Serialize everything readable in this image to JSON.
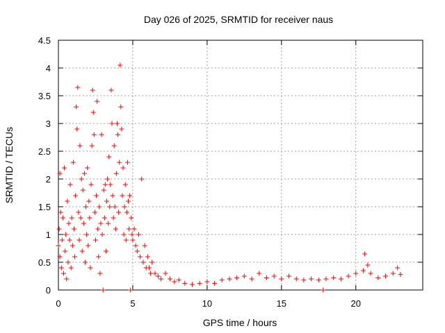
{
  "chart_data": {
    "type": "scatter",
    "title": "Day 026 of 2025, SRMTID for receiver naus",
    "xlabel": "GPS time / hours",
    "ylabel": "SRMTID / TECUs",
    "xlim": [
      0,
      24.5
    ],
    "ylim": [
      0,
      4.5
    ],
    "x_ticks": [
      0,
      5,
      10,
      15,
      20
    ],
    "x_tick_labels": [
      "0",
      "5",
      "10",
      "15",
      "20"
    ],
    "y_ticks": [
      0,
      0.5,
      1,
      1.5,
      2,
      2.5,
      3,
      3.5,
      4,
      4.5
    ],
    "y_tick_labels": [
      "0",
      "0.5",
      "1",
      "1.5",
      "2",
      "2.5",
      "3",
      "3.5",
      "4",
      "4.5"
    ],
    "grid": true,
    "marker": "+",
    "series": [
      {
        "name": "SRMTID",
        "color": "#ff0000",
        "points": [
          [
            0.0,
            0.8
          ],
          [
            0.05,
            1.1
          ],
          [
            0.1,
            0.6
          ],
          [
            0.1,
            2.1
          ],
          [
            0.15,
            1.4
          ],
          [
            0.2,
            0.4
          ],
          [
            0.25,
            0.9
          ],
          [
            0.3,
            1.3
          ],
          [
            0.35,
            0.3
          ],
          [
            0.4,
            2.2
          ],
          [
            0.45,
            0.7
          ],
          [
            0.5,
            1.0
          ],
          [
            0.55,
            0.2
          ],
          [
            0.6,
            1.6
          ],
          [
            0.65,
            0.5
          ],
          [
            0.7,
            1.2
          ],
          [
            0.75,
            0.9
          ],
          [
            0.8,
            1.9
          ],
          [
            0.85,
            0.4
          ],
          [
            0.9,
            1.3
          ],
          [
            0.95,
            0.8
          ],
          [
            1.0,
            2.3
          ],
          [
            1.05,
            1.1
          ],
          [
            1.1,
            0.6
          ],
          [
            1.15,
            1.7
          ],
          [
            1.2,
            3.3
          ],
          [
            1.25,
            2.9
          ],
          [
            1.3,
            3.65
          ],
          [
            1.35,
            1.4
          ],
          [
            1.4,
            0.9
          ],
          [
            1.45,
            2.6
          ],
          [
            1.5,
            1.3
          ],
          [
            1.55,
            2.0
          ],
          [
            1.6,
            0.7
          ],
          [
            1.65,
            1.8
          ],
          [
            1.7,
            1.2
          ],
          [
            1.75,
            2.1
          ],
          [
            1.8,
            0.5
          ],
          [
            1.85,
            1.5
          ],
          [
            1.9,
            1.0
          ],
          [
            1.95,
            2.2
          ],
          [
            2.0,
            0.8
          ],
          [
            2.05,
            1.6
          ],
          [
            2.1,
            1.3
          ],
          [
            2.15,
            0.4
          ],
          [
            2.2,
            1.9
          ],
          [
            2.25,
            2.6
          ],
          [
            2.3,
            3.6
          ],
          [
            2.35,
            3.2
          ],
          [
            2.4,
            2.8
          ],
          [
            2.45,
            1.4
          ],
          [
            2.5,
            0.9
          ],
          [
            2.55,
            1.7
          ],
          [
            2.6,
            3.4
          ],
          [
            2.65,
            1.1
          ],
          [
            2.7,
            0.6
          ],
          [
            2.75,
            1.5
          ],
          [
            2.8,
            0.3
          ],
          [
            2.85,
            1.2
          ],
          [
            2.9,
            2.8
          ],
          [
            2.95,
            1.0
          ],
          [
            3.0,
            0.0
          ],
          [
            3.05,
            1.8
          ],
          [
            3.1,
            1.3
          ],
          [
            3.15,
            1.9
          ],
          [
            3.2,
            0.7
          ],
          [
            3.25,
            1.6
          ],
          [
            3.3,
            2.0
          ],
          [
            3.35,
            1.2
          ],
          [
            3.4,
            2.4
          ],
          [
            3.45,
            1.5
          ],
          [
            3.5,
            1.9
          ],
          [
            3.55,
            3.6
          ],
          [
            3.6,
            3.0
          ],
          [
            3.65,
            1.7
          ],
          [
            3.7,
            1.3
          ],
          [
            3.75,
            2.6
          ],
          [
            3.8,
            1.5
          ],
          [
            3.85,
            1.1
          ],
          [
            3.9,
            2.1
          ],
          [
            3.95,
            3.0
          ],
          [
            4.0,
            2.8
          ],
          [
            4.05,
            1.4
          ],
          [
            4.1,
            2.3
          ],
          [
            4.15,
            4.05
          ],
          [
            4.2,
            3.3
          ],
          [
            4.25,
            2.9
          ],
          [
            4.3,
            1.7
          ],
          [
            4.35,
            2.2
          ],
          [
            4.4,
            1.0
          ],
          [
            4.45,
            1.5
          ],
          [
            4.5,
            1.9
          ],
          [
            4.55,
            0.9
          ],
          [
            4.6,
            1.4
          ],
          [
            4.65,
            2.3
          ],
          [
            4.7,
            1.6
          ],
          [
            4.75,
            1.1
          ],
          [
            4.8,
            1.7
          ],
          [
            4.85,
            0.0
          ],
          [
            4.9,
            1.3
          ],
          [
            4.95,
            1.0
          ],
          [
            5.0,
            0.9
          ],
          [
            5.1,
            1.1
          ],
          [
            5.2,
            0.8
          ],
          [
            5.3,
            0.7
          ],
          [
            5.4,
            1.0
          ],
          [
            5.5,
            0.6
          ],
          [
            5.6,
            2.0
          ],
          [
            5.7,
            0.5
          ],
          [
            5.8,
            0.8
          ],
          [
            5.9,
            0.4
          ],
          [
            6.0,
            0.6
          ],
          [
            6.1,
            0.4
          ],
          [
            6.2,
            0.3
          ],
          [
            6.3,
            0.5
          ],
          [
            6.5,
            0.3
          ],
          [
            6.7,
            0.25
          ],
          [
            6.9,
            0.2
          ],
          [
            7.2,
            0.3
          ],
          [
            7.5,
            0.2
          ],
          [
            7.8,
            0.15
          ],
          [
            8.1,
            0.18
          ],
          [
            8.5,
            0.12
          ],
          [
            9.0,
            0.1
          ],
          [
            9.5,
            0.12
          ],
          [
            10.0,
            0.15
          ],
          [
            10.5,
            0.12
          ],
          [
            11.0,
            0.18
          ],
          [
            11.5,
            0.2
          ],
          [
            12.0,
            0.22
          ],
          [
            12.5,
            0.25
          ],
          [
            13.0,
            0.2
          ],
          [
            13.5,
            0.3
          ],
          [
            14.0,
            0.22
          ],
          [
            14.5,
            0.25
          ],
          [
            15.0,
            0.2
          ],
          [
            15.5,
            0.25
          ],
          [
            16.0,
            0.2
          ],
          [
            16.5,
            0.18
          ],
          [
            17.0,
            0.2
          ],
          [
            17.5,
            0.18
          ],
          [
            17.8,
            0.0
          ],
          [
            18.0,
            0.2
          ],
          [
            18.5,
            0.22
          ],
          [
            19.0,
            0.2
          ],
          [
            19.5,
            0.25
          ],
          [
            20.0,
            0.3
          ],
          [
            20.5,
            0.35
          ],
          [
            20.6,
            0.65
          ],
          [
            20.8,
            0.45
          ],
          [
            21.0,
            0.3
          ],
          [
            21.5,
            0.22
          ],
          [
            22.0,
            0.25
          ],
          [
            22.5,
            0.3
          ],
          [
            22.8,
            0.4
          ],
          [
            23.0,
            0.28
          ]
        ]
      }
    ]
  }
}
